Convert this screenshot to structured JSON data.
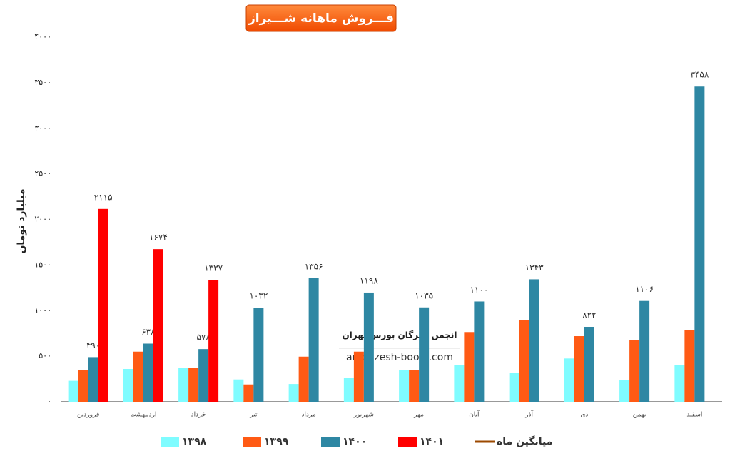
{
  "chart_data": {
    "type": "bar",
    "title": "فـــروش ماهانه شـــیراز",
    "y_label": "میلیارد تومان",
    "annotations": [
      "انجمن خبرگان بورس تهران",
      "amoozesh-boors.com"
    ],
    "categories": [
      "فروردین",
      "اردیبهشت",
      "خرداد",
      "تیر",
      "مرداد",
      "شهریور",
      "مهر",
      "آبان",
      "آذر",
      "دی",
      "بهمن",
      "اسفند"
    ],
    "series": [
      {
        "name": "۱۳۹۸",
        "color": "#7ffcff",
        "values": [
          230,
          360,
          375,
          245,
          195,
          265,
          350,
          405,
          320,
          475,
          235,
          405
        ]
      },
      {
        "name": "۱۳۹۹",
        "color": "#ff5a14",
        "values": [
          345,
          550,
          370,
          190,
          495,
          550,
          350,
          765,
          900,
          720,
          675,
          785
        ]
      },
      {
        "name": "۱۴۰۰",
        "color": "#2e87a3",
        "values": [
          490,
          638,
          578,
          1032,
          1356,
          1198,
          1035,
          1100,
          1343,
          822,
          1106,
          3458
        ],
        "value_labels": [
          "۴۹۰",
          "۶۳۸",
          "۵۷۸",
          "۱۰۳۲",
          "۱۳۵۶",
          "۱۱۹۸",
          "۱۰۳۵",
          "۱۱۰۰",
          "۱۳۴۳",
          "۸۲۲",
          "۱۱۰۶",
          "۳۴۵۸"
        ]
      },
      {
        "name": "۱۴۰۱",
        "color": "#ff0000",
        "values": [
          2115,
          1674,
          1337,
          null,
          null,
          null,
          null,
          null,
          null,
          null,
          null,
          null
        ],
        "value_labels": [
          "۲۱۱۵",
          "۱۶۷۴",
          "۱۳۳۷",
          null,
          null,
          null,
          null,
          null,
          null,
          null,
          null,
          null
        ]
      },
      {
        "name": "میانگین ماه",
        "color": "#9c4a00",
        "type": "line",
        "values": [
          null,
          null,
          null,
          null,
          null,
          null,
          null,
          null,
          null,
          null,
          null,
          null
        ]
      }
    ],
    "ylim": [
      0,
      4000
    ],
    "yticks": [
      {
        "value": 0,
        "label": "۰"
      },
      {
        "value": 500,
        "label": "۵۰۰"
      },
      {
        "value": 1000,
        "label": "۱۰۰۰"
      },
      {
        "value": 1500,
        "label": "۱۵۰۰"
      },
      {
        "value": 2000,
        "label": "۲۰۰۰"
      },
      {
        "value": 2500,
        "label": "۲۵۰۰"
      },
      {
        "value": 3000,
        "label": "۳۰۰۰"
      },
      {
        "value": 3500,
        "label": "۳۵۰۰"
      },
      {
        "value": 4000,
        "label": "۴۰۰۰"
      }
    ],
    "grid": false
  }
}
